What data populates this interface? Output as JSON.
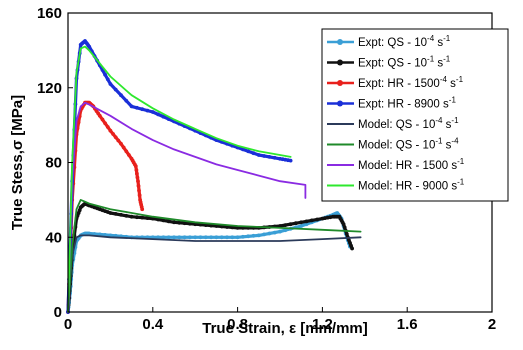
{
  "chart_data": {
    "type": "line",
    "xlabel": "True Strain, ε [mm/mm]",
    "ylabel": "True Stess,σ [MPa]",
    "xlim": [
      0,
      2
    ],
    "ylim": [
      0,
      160
    ],
    "xticks": [
      "0",
      "0.4",
      "0.8",
      "1.2",
      "1.6",
      "2"
    ],
    "yticks": [
      "0",
      "40",
      "80",
      "120",
      "160"
    ],
    "grid": false,
    "legend_position": "top-right",
    "series": [
      {
        "name": "Expt:    QS - 10^-4 s^-1",
        "label_base": "Expt:    QS - 10",
        "label_exp": "-4",
        "label_tail": " s",
        "label_tail_exp": "-1",
        "color": "#3a9fd6",
        "kind": "expt",
        "x": [
          0.0,
          0.01,
          0.02,
          0.04,
          0.06,
          0.08,
          0.1,
          0.2,
          0.3,
          0.4,
          0.5,
          0.6,
          0.7,
          0.8,
          0.9,
          1.0,
          1.1,
          1.2,
          1.25,
          1.27,
          1.29,
          1.31,
          1.33
        ],
        "y": [
          0,
          10,
          25,
          38,
          41,
          42,
          42,
          41,
          40,
          40,
          40,
          40,
          40,
          40,
          41,
          43,
          46,
          50,
          52,
          53,
          50,
          42,
          35
        ]
      },
      {
        "name": "Expt:    QS - 10^-1 s^-1",
        "label_base": "Expt:    QS - 10",
        "label_exp": "-1",
        "label_tail": " s",
        "label_tail_exp": "-1",
        "color": "#111111",
        "kind": "expt",
        "x": [
          0.0,
          0.01,
          0.02,
          0.04,
          0.06,
          0.08,
          0.1,
          0.15,
          0.2,
          0.3,
          0.4,
          0.5,
          0.6,
          0.7,
          0.8,
          0.9,
          1.0,
          1.1,
          1.2,
          1.25,
          1.28,
          1.3,
          1.32,
          1.34
        ],
        "y": [
          0,
          15,
          32,
          50,
          56,
          58,
          57,
          55,
          53,
          51,
          50,
          48,
          47,
          46,
          45,
          45,
          46,
          48,
          50,
          51,
          51,
          47,
          40,
          34
        ]
      },
      {
        "name": "Expt:    HR - 1500^-4 s^-1",
        "label_base": "Expt:    HR - 1500",
        "label_exp": "-4",
        "label_tail": " s",
        "label_tail_exp": "-1",
        "color": "#e8201c",
        "kind": "expt",
        "x": [
          0.0,
          0.02,
          0.04,
          0.06,
          0.08,
          0.1,
          0.12,
          0.15,
          0.2,
          0.25,
          0.3,
          0.32,
          0.33,
          0.34,
          0.35
        ],
        "y": [
          0,
          60,
          95,
          108,
          112,
          112,
          110,
          105,
          97,
          90,
          82,
          78,
          70,
          60,
          55
        ]
      },
      {
        "name": "Expt:    HR - 8900 s^-1",
        "label_base": "Expt:    HR - 8900",
        "label_exp": "",
        "label_tail": " s",
        "label_tail_exp": "-1",
        "color": "#1a2fd8",
        "kind": "expt",
        "x": [
          0.0,
          0.02,
          0.04,
          0.06,
          0.08,
          0.1,
          0.15,
          0.2,
          0.3,
          0.4,
          0.5,
          0.6,
          0.7,
          0.8,
          0.9,
          1.0,
          1.05
        ],
        "y": [
          0,
          70,
          125,
          143,
          145,
          142,
          132,
          122,
          110,
          107,
          102,
          97,
          92,
          88,
          84,
          82,
          81
        ]
      },
      {
        "name": "Model: QS - 10^-4 s^-1",
        "label_base": "Model: QS - 10",
        "label_exp": "-4",
        "label_tail": " s",
        "label_tail_exp": "-1",
        "color": "#2b3a5a",
        "kind": "model",
        "x": [
          0.0,
          0.02,
          0.04,
          0.06,
          0.1,
          0.2,
          0.4,
          0.6,
          0.8,
          1.0,
          1.2,
          1.38
        ],
        "y": [
          0,
          30,
          40,
          41,
          41,
          40,
          39,
          38,
          38,
          38,
          39,
          40
        ]
      },
      {
        "name": "Model: QS - 10^-1 s^-4",
        "label_base": "Model: QS - 10",
        "label_exp": "-1",
        "label_tail": " s",
        "label_tail_exp": "-4",
        "color": "#1f8a2a",
        "kind": "model",
        "x": [
          0.0,
          0.02,
          0.04,
          0.06,
          0.08,
          0.1,
          0.2,
          0.4,
          0.6,
          0.8,
          1.0,
          1.2,
          1.38
        ],
        "y": [
          0,
          35,
          55,
          60,
          59,
          58,
          55,
          51,
          48,
          46,
          45,
          44,
          43
        ]
      },
      {
        "name": "Model: HR - 1500 s^-1",
        "label_base": "Model: HR - 1500",
        "label_exp": "",
        "label_tail": " s",
        "label_tail_exp": "-1",
        "color": "#8a2be2",
        "kind": "model",
        "x": [
          0.0,
          0.02,
          0.04,
          0.06,
          0.08,
          0.1,
          0.2,
          0.3,
          0.4,
          0.5,
          0.6,
          0.7,
          0.8,
          0.9,
          1.0,
          1.12,
          1.12
        ],
        "y": [
          0,
          70,
          102,
          110,
          112,
          111,
          105,
          98,
          92,
          87,
          83,
          79,
          76,
          73,
          70,
          68,
          61
        ]
      },
      {
        "name": "Model: HR - 9000 s^-1",
        "label_base": "Model: HR - 9000",
        "label_exp": "",
        "label_tail": " s",
        "label_tail_exp": "-1",
        "color": "#2ee82e",
        "kind": "model",
        "x": [
          0.0,
          0.02,
          0.04,
          0.06,
          0.08,
          0.1,
          0.2,
          0.3,
          0.4,
          0.5,
          0.6,
          0.7,
          0.8,
          0.9,
          1.0,
          1.05
        ],
        "y": [
          0,
          80,
          128,
          141,
          142,
          140,
          126,
          116,
          109,
          103,
          98,
          93,
          89,
          86,
          84,
          83
        ]
      }
    ]
  }
}
